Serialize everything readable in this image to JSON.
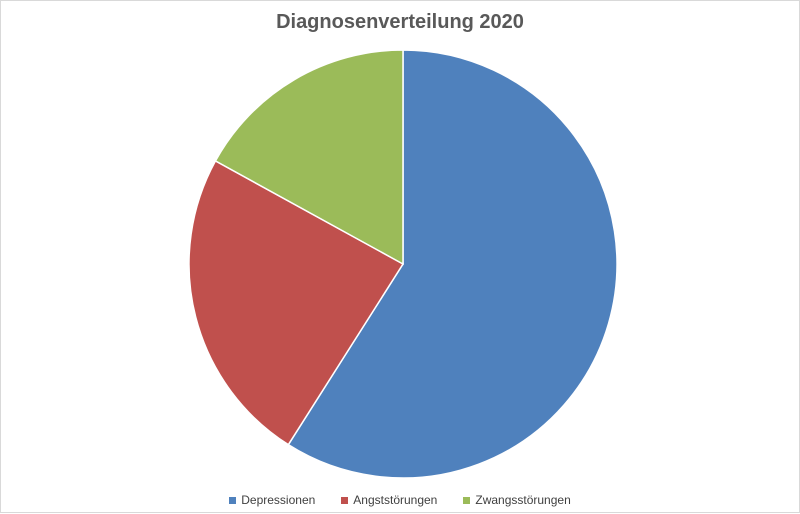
{
  "chart_data": {
    "type": "pie",
    "title": "Diagnosenverteilung 2020",
    "categories": [
      "Depressionen",
      "Angststörungen",
      "Zwangsstörungen"
    ],
    "values": [
      59,
      24,
      17
    ],
    "unit": "percent (estimated)",
    "colors": [
      "#4f81bd",
      "#c0504d",
      "#9bbb59"
    ],
    "legend_position": "bottom",
    "start_angle_deg": 0,
    "direction": "clockwise"
  }
}
